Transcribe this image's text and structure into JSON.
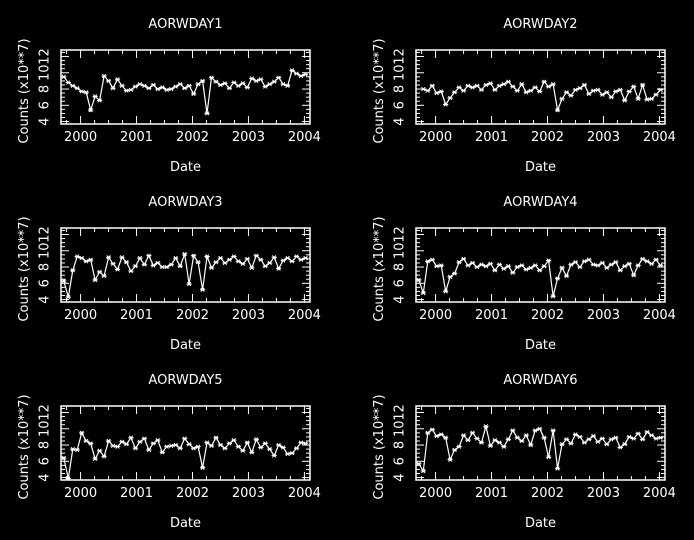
{
  "figure": {
    "background": "#000000",
    "foreground": "#ffffff"
  },
  "chart_data": [
    {
      "type": "line",
      "title": "AORWDAY1",
      "xlabel": "Date",
      "ylabel": "Counts  (x10**7)",
      "xlim": [
        1999.65,
        2004.1
      ],
      "ylim": [
        3.7,
        12.8
      ],
      "x_ticks": [
        2000,
        2001,
        2002,
        2003,
        2004
      ],
      "y_ticks": [
        4,
        6,
        8,
        10,
        12
      ],
      "y_tick_labels": [
        "4",
        "6",
        "8",
        "10",
        "12"
      ],
      "series": [
        {
          "marker": "asterisk",
          "x": [
            1999.7,
            1999.78,
            1999.86,
            1999.94,
            2000.02,
            2000.1,
            2000.18,
            2000.26,
            2000.34,
            2000.42,
            2000.5,
            2000.58,
            2000.66,
            2000.74,
            2000.82,
            2000.9,
            2000.98,
            2001.06,
            2001.14,
            2001.22,
            2001.3,
            2001.38,
            2001.46,
            2001.54,
            2001.62,
            2001.7,
            2001.78,
            2001.86,
            2001.94,
            2002.02,
            2002.1,
            2002.18,
            2002.26,
            2002.34,
            2002.42,
            2002.5,
            2002.58,
            2002.66,
            2002.74,
            2002.82,
            2002.9,
            2002.98,
            2003.06,
            2003.14,
            2003.22,
            2003.3,
            2003.38,
            2003.46,
            2003.54,
            2003.62,
            2003.7,
            2003.78,
            2003.86,
            2003.94,
            2004.02
          ],
          "y": [
            9.5,
            8.8,
            8.4,
            8.1,
            7.7,
            7.6,
            5.4,
            7.1,
            6.6,
            9.6,
            9.0,
            8.1,
            9.2,
            8.4,
            7.8,
            7.9,
            8.3,
            8.6,
            8.4,
            8.1,
            8.5,
            8.0,
            8.2,
            7.9,
            8.0,
            8.3,
            8.6,
            8.1,
            8.4,
            7.4,
            8.6,
            9.0,
            5.0,
            9.4,
            8.9,
            8.5,
            8.7,
            8.1,
            8.8,
            8.4,
            8.7,
            8.2,
            9.3,
            9.0,
            9.2,
            8.3,
            8.6,
            8.9,
            9.4,
            8.6,
            8.4,
            10.3,
            9.9,
            9.6,
            9.8
          ]
        }
      ]
    },
    {
      "type": "line",
      "title": "AORWDAY2",
      "xlabel": "Date",
      "ylabel": "Counts  (x10**7)",
      "xlim": [
        1999.65,
        2004.1
      ],
      "ylim": [
        3.7,
        12.8
      ],
      "x_ticks": [
        2000,
        2001,
        2002,
        2003,
        2004
      ],
      "y_ticks": [
        4,
        6,
        8,
        10,
        12
      ],
      "y_tick_labels": [
        "4",
        "6",
        "8",
        "10",
        "12"
      ],
      "series": [
        {
          "marker": "asterisk",
          "x": [
            1999.78,
            1999.86,
            1999.94,
            2000.02,
            2000.1,
            2000.18,
            2000.26,
            2000.34,
            2000.42,
            2000.5,
            2000.58,
            2000.66,
            2000.74,
            2000.82,
            2000.9,
            2000.98,
            2001.06,
            2001.14,
            2001.22,
            2001.3,
            2001.38,
            2001.46,
            2001.54,
            2001.62,
            2001.7,
            2001.78,
            2001.86,
            2001.94,
            2002.02,
            2002.1,
            2002.18,
            2002.26,
            2002.34,
            2002.42,
            2002.5,
            2002.58,
            2002.66,
            2002.74,
            2002.82,
            2002.9,
            2002.98,
            2003.06,
            2003.14,
            2003.22,
            2003.3,
            2003.38,
            2003.46,
            2003.54,
            2003.62,
            2003.7,
            2003.78,
            2003.86,
            2003.94,
            2004.02
          ],
          "y": [
            8.0,
            7.8,
            8.4,
            7.5,
            7.7,
            6.1,
            6.9,
            7.6,
            8.2,
            7.8,
            8.4,
            8.2,
            8.4,
            7.9,
            8.5,
            8.7,
            7.9,
            8.4,
            8.6,
            8.9,
            8.3,
            7.8,
            8.6,
            7.6,
            7.8,
            8.2,
            7.7,
            8.9,
            8.3,
            8.6,
            5.4,
            6.8,
            7.6,
            7.2,
            7.9,
            8.1,
            8.5,
            7.4,
            7.8,
            7.9,
            7.3,
            7.6,
            7.0,
            7.7,
            7.9,
            6.6,
            7.7,
            8.3,
            6.8,
            8.5,
            6.7,
            6.8,
            7.3,
            7.9
          ]
        }
      ]
    },
    {
      "type": "line",
      "title": "AORWDAY3",
      "xlabel": "Date",
      "ylabel": "Counts  (x10**7)",
      "xlim": [
        1999.65,
        2004.1
      ],
      "ylim": [
        3.7,
        12.8
      ],
      "x_ticks": [
        2000,
        2001,
        2002,
        2003,
        2004
      ],
      "y_ticks": [
        4,
        6,
        8,
        10,
        12
      ],
      "y_tick_labels": [
        "4",
        "6",
        "8",
        "10",
        "12"
      ],
      "series": [
        {
          "marker": "asterisk",
          "x": [
            1999.7,
            1999.78,
            1999.86,
            1999.94,
            2000.02,
            2000.1,
            2000.18,
            2000.26,
            2000.34,
            2000.42,
            2000.5,
            2000.58,
            2000.66,
            2000.74,
            2000.82,
            2000.9,
            2000.98,
            2001.06,
            2001.14,
            2001.22,
            2001.3,
            2001.38,
            2001.46,
            2001.54,
            2001.62,
            2001.7,
            2001.78,
            2001.86,
            2001.94,
            2002.02,
            2002.1,
            2002.18,
            2002.26,
            2002.34,
            2002.42,
            2002.5,
            2002.58,
            2002.66,
            2002.74,
            2002.82,
            2002.9,
            2002.98,
            2003.06,
            2003.14,
            2003.22,
            2003.3,
            2003.38,
            2003.46,
            2003.54,
            2003.62,
            2003.7,
            2003.78,
            2003.86,
            2003.94,
            2004.02
          ],
          "y": [
            6.3,
            4.3,
            7.6,
            9.3,
            9.1,
            8.7,
            8.9,
            6.4,
            7.4,
            6.9,
            9.2,
            8.4,
            7.7,
            9.2,
            8.6,
            7.5,
            8.1,
            9.1,
            8.3,
            9.4,
            8.2,
            8.5,
            8.0,
            8.0,
            8.3,
            9.1,
            8.1,
            9.6,
            5.9,
            9.4,
            8.6,
            5.2,
            9.3,
            7.9,
            8.6,
            9.1,
            8.5,
            8.9,
            9.3,
            8.7,
            8.4,
            9.0,
            7.9,
            9.4,
            8.9,
            8.1,
            8.5,
            9.2,
            7.8,
            8.8,
            9.1,
            8.7,
            9.3,
            8.9,
            9.1
          ]
        }
      ]
    },
    {
      "type": "line",
      "title": "AORWDAY4",
      "xlabel": "Date",
      "ylabel": "Counts  (x10**7)",
      "xlim": [
        1999.65,
        2004.1
      ],
      "ylim": [
        3.7,
        12.8
      ],
      "x_ticks": [
        2000,
        2001,
        2002,
        2003,
        2004
      ],
      "y_ticks": [
        4,
        6,
        8,
        10,
        12
      ],
      "y_tick_labels": [
        "4",
        "6",
        "8",
        "10",
        "12"
      ],
      "series": [
        {
          "marker": "asterisk",
          "x": [
            1999.7,
            1999.78,
            1999.86,
            1999.94,
            2000.02,
            2000.1,
            2000.18,
            2000.26,
            2000.34,
            2000.42,
            2000.5,
            2000.58,
            2000.66,
            2000.74,
            2000.82,
            2000.9,
            2000.98,
            2001.06,
            2001.14,
            2001.22,
            2001.3,
            2001.38,
            2001.46,
            2001.54,
            2001.62,
            2001.7,
            2001.78,
            2001.86,
            2001.94,
            2002.02,
            2002.1,
            2002.18,
            2002.26,
            2002.34,
            2002.42,
            2002.5,
            2002.58,
            2002.66,
            2002.74,
            2002.82,
            2002.9,
            2002.98,
            2003.06,
            2003.14,
            2003.22,
            2003.3,
            2003.38,
            2003.46,
            2003.54,
            2003.62,
            2003.7,
            2003.78,
            2003.86,
            2003.94,
            2004.02
          ],
          "y": [
            6.4,
            4.8,
            8.7,
            8.9,
            8.1,
            8.2,
            5.0,
            6.8,
            7.2,
            8.6,
            9.0,
            8.2,
            8.5,
            8.0,
            8.3,
            8.1,
            8.4,
            7.6,
            8.3,
            7.8,
            8.1,
            7.3,
            8.0,
            8.2,
            7.7,
            7.9,
            8.2,
            7.6,
            8.1,
            8.8,
            4.4,
            6.6,
            7.9,
            6.9,
            8.3,
            8.6,
            8.0,
            8.7,
            8.9,
            8.3,
            8.2,
            8.5,
            7.9,
            8.3,
            8.6,
            7.6,
            8.1,
            8.4,
            7.0,
            8.2,
            9.0,
            8.7,
            8.4,
            8.9,
            8.2
          ]
        }
      ]
    },
    {
      "type": "line",
      "title": "AORWDAY5",
      "xlabel": "Date",
      "ylabel": "Counts  (x10**7)",
      "xlim": [
        1999.65,
        2004.1
      ],
      "ylim": [
        3.7,
        12.8
      ],
      "x_ticks": [
        2000,
        2001,
        2002,
        2003,
        2004
      ],
      "y_ticks": [
        4,
        6,
        8,
        10,
        12
      ],
      "y_tick_labels": [
        "4",
        "6",
        "8",
        "10",
        "12"
      ],
      "series": [
        {
          "marker": "asterisk",
          "x": [
            1999.7,
            1999.78,
            1999.86,
            1999.94,
            2000.02,
            2000.1,
            2000.18,
            2000.26,
            2000.34,
            2000.42,
            2000.5,
            2000.58,
            2000.66,
            2000.74,
            2000.82,
            2000.9,
            2000.98,
            2001.06,
            2001.14,
            2001.22,
            2001.3,
            2001.38,
            2001.46,
            2001.54,
            2001.62,
            2001.7,
            2001.78,
            2001.86,
            2001.94,
            2002.02,
            2002.1,
            2002.18,
            2002.26,
            2002.34,
            2002.42,
            2002.5,
            2002.58,
            2002.66,
            2002.74,
            2002.82,
            2002.9,
            2002.98,
            2003.06,
            2003.14,
            2003.22,
            2003.3,
            2003.38,
            2003.46,
            2003.54,
            2003.62,
            2003.7,
            2003.78,
            2003.86,
            2003.94,
            2004.02
          ],
          "y": [
            6.4,
            3.9,
            7.5,
            7.4,
            9.5,
            8.5,
            8.2,
            6.3,
            7.3,
            6.6,
            8.5,
            7.9,
            7.8,
            8.4,
            8.1,
            8.9,
            7.6,
            8.4,
            8.8,
            7.4,
            8.2,
            8.6,
            7.1,
            7.8,
            7.9,
            8.0,
            7.6,
            8.8,
            8.1,
            7.6,
            7.8,
            5.2,
            8.3,
            7.9,
            8.9,
            8.0,
            7.6,
            8.2,
            8.6,
            7.8,
            7.3,
            8.3,
            7.1,
            8.7,
            7.7,
            8.2,
            7.5,
            6.7,
            8.0,
            7.7,
            6.9,
            7.0,
            7.6,
            8.3,
            8.2
          ]
        }
      ]
    },
    {
      "type": "line",
      "title": "AORWDAY6",
      "xlabel": "Date",
      "ylabel": "Counts  (x10**7)",
      "xlim": [
        1999.65,
        2004.1
      ],
      "ylim": [
        3.7,
        12.8
      ],
      "x_ticks": [
        2000,
        2001,
        2002,
        2003,
        2004
      ],
      "y_ticks": [
        4,
        6,
        8,
        10,
        12
      ],
      "y_tick_labels": [
        "4",
        "6",
        "8",
        "10",
        "12"
      ],
      "series": [
        {
          "marker": "asterisk",
          "x": [
            1999.7,
            1999.78,
            1999.86,
            1999.94,
            2000.02,
            2000.1,
            2000.18,
            2000.26,
            2000.34,
            2000.42,
            2000.5,
            2000.58,
            2000.66,
            2000.74,
            2000.82,
            2000.9,
            2000.98,
            2001.06,
            2001.14,
            2001.22,
            2001.3,
            2001.38,
            2001.46,
            2001.54,
            2001.62,
            2001.7,
            2001.78,
            2001.86,
            2001.94,
            2002.02,
            2002.1,
            2002.18,
            2002.26,
            2002.34,
            2002.42,
            2002.5,
            2002.58,
            2002.66,
            2002.74,
            2002.82,
            2002.9,
            2002.98,
            2003.06,
            2003.14,
            2003.22,
            2003.3,
            2003.38,
            2003.46,
            2003.54,
            2003.62,
            2003.7,
            2003.78,
            2003.86,
            2003.94,
            2004.02
          ],
          "y": [
            5.7,
            4.8,
            9.5,
            9.9,
            9.1,
            9.3,
            8.9,
            6.2,
            7.4,
            7.8,
            9.2,
            8.6,
            9.5,
            8.8,
            8.3,
            10.3,
            7.9,
            8.6,
            8.3,
            7.8,
            8.7,
            9.8,
            8.9,
            8.5,
            9.2,
            8.0,
            9.8,
            10.0,
            8.9,
            6.5,
            9.8,
            5.1,
            8.1,
            8.7,
            8.2,
            9.3,
            9.0,
            8.3,
            8.7,
            9.1,
            8.4,
            8.8,
            8.1,
            8.7,
            8.9,
            7.7,
            8.1,
            9.0,
            8.8,
            9.4,
            8.7,
            9.6,
            9.2,
            8.8,
            8.9
          ]
        }
      ]
    }
  ]
}
